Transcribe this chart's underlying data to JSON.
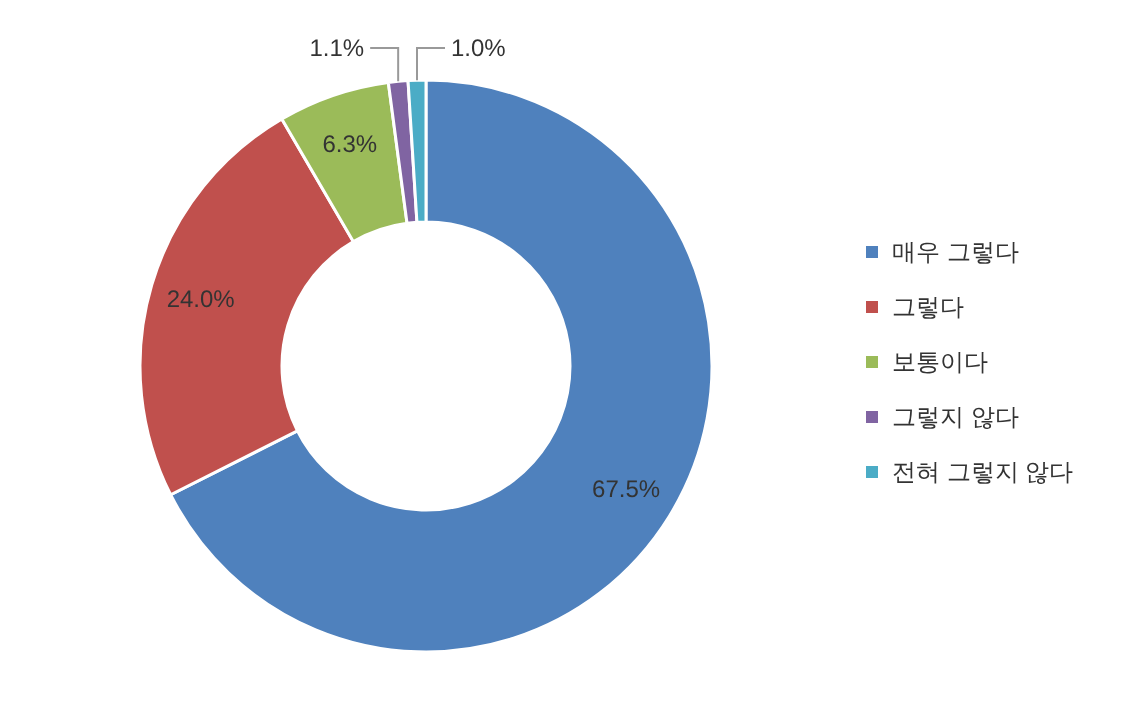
{
  "chart_data": {
    "type": "donut",
    "categories": [
      "매우 그렇다",
      "그렇다",
      "보통이다",
      "그렇지 않다",
      "전혀 그렇지 않다"
    ],
    "values": [
      67.5,
      24.0,
      6.3,
      1.1,
      1.0
    ],
    "colors": [
      "#4f81bd",
      "#c0504d",
      "#9bbb59",
      "#8064a2",
      "#4bacc6"
    ],
    "value_labels": [
      "67.5%",
      "24.0%",
      "6.3%",
      "1.1%",
      "1.0%"
    ],
    "legend": "right"
  }
}
